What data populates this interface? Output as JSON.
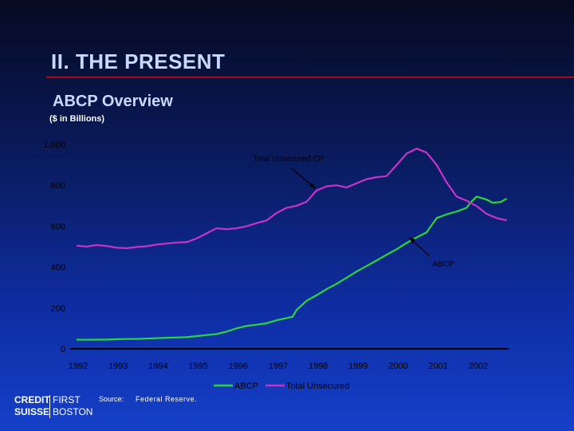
{
  "slide": {
    "title": "II.  THE PRESENT",
    "section_title": "ABCP Overview",
    "units_note": "($ in Billions)"
  },
  "footer": {
    "source_label": "Source:",
    "source_value": "Federal Reserve.",
    "logo_line1": "CREDIT",
    "logo_line2": "SUISSE",
    "logo_line3": "FIRST",
    "logo_line4": "BOSTON"
  },
  "colors": {
    "abcp": "#2bd63a",
    "total_unsecured": "#c832c8",
    "title_rule": "#c81e3c",
    "axis": "#000000"
  },
  "chart_data": {
    "type": "line",
    "title": "",
    "ylabel": "",
    "xlabel": "",
    "ylim": [
      0,
      1000
    ],
    "xlim": [
      1992,
      2002.8
    ],
    "y_ticks": [
      "1,000",
      "800",
      "600",
      "400",
      "200",
      "0"
    ],
    "y_tick_values": [
      1000,
      800,
      600,
      400,
      200,
      0
    ],
    "x_ticks": [
      "1992",
      "1993",
      "1994",
      "1995",
      "1996",
      "1997",
      "1998",
      "1999",
      "2000",
      "2001",
      "2002"
    ],
    "x_tick_values": [
      1992,
      1993,
      1994,
      1995,
      1996,
      1997,
      1998,
      1999,
      2000,
      2001,
      2002
    ],
    "grid": false,
    "legend_position": "bottom",
    "annotations": [
      {
        "text": "Total Unsecured CP",
        "series": "Total Unsecured"
      },
      {
        "text": "ABCP",
        "series": "ABCP"
      }
    ],
    "series": [
      {
        "name": "ABCP",
        "x": [
          1992.0,
          1992.25,
          1992.5,
          1992.75,
          1993.0,
          1993.25,
          1993.5,
          1993.75,
          1994.0,
          1994.25,
          1994.5,
          1994.75,
          1995.0,
          1995.25,
          1995.5,
          1995.75,
          1996.0,
          1996.25,
          1996.5,
          1996.75,
          1997.0,
          1997.25,
          1997.4,
          1997.5,
          1997.75,
          1998.0,
          1998.25,
          1998.5,
          1998.75,
          1999.0,
          1999.25,
          1999.5,
          1999.75,
          2000.0,
          2000.25,
          2000.5,
          2000.75,
          2001.0,
          2001.25,
          2001.5,
          2001.75,
          2001.85,
          2002.0,
          2002.25,
          2002.4,
          2002.6,
          2002.75
        ],
        "y": [
          45,
          44,
          45,
          45,
          47,
          48,
          48,
          50,
          52,
          54,
          55,
          57,
          62,
          67,
          72,
          84,
          100,
          112,
          118,
          125,
          140,
          150,
          157,
          190,
          235,
          262,
          292,
          318,
          348,
          378,
          405,
          432,
          460,
          487,
          518,
          545,
          570,
          640,
          658,
          672,
          690,
          716,
          745,
          730,
          715,
          718,
          735
        ]
      },
      {
        "name": "Total Unsecured",
        "x": [
          1992.0,
          1992.25,
          1992.5,
          1992.75,
          1993.0,
          1993.25,
          1993.5,
          1993.75,
          1994.0,
          1994.25,
          1994.5,
          1994.75,
          1995.0,
          1995.25,
          1995.5,
          1995.75,
          1996.0,
          1996.25,
          1996.5,
          1996.75,
          1997.0,
          1997.25,
          1997.5,
          1997.75,
          1998.0,
          1998.25,
          1998.5,
          1998.75,
          1999.0,
          1999.25,
          1999.5,
          1999.75,
          2000.0,
          2000.25,
          2000.5,
          2000.75,
          2001.0,
          2001.25,
          2001.5,
          2001.75,
          2002.0,
          2002.25,
          2002.5,
          2002.75
        ],
        "y": [
          505,
          500,
          508,
          503,
          495,
          492,
          498,
          502,
          510,
          515,
          520,
          522,
          540,
          565,
          590,
          585,
          590,
          600,
          615,
          628,
          665,
          690,
          700,
          720,
          775,
          795,
          800,
          790,
          810,
          830,
          840,
          845,
          900,
          955,
          980,
          960,
          900,
          815,
          745,
          725,
          698,
          660,
          640,
          628
        ]
      }
    ]
  }
}
